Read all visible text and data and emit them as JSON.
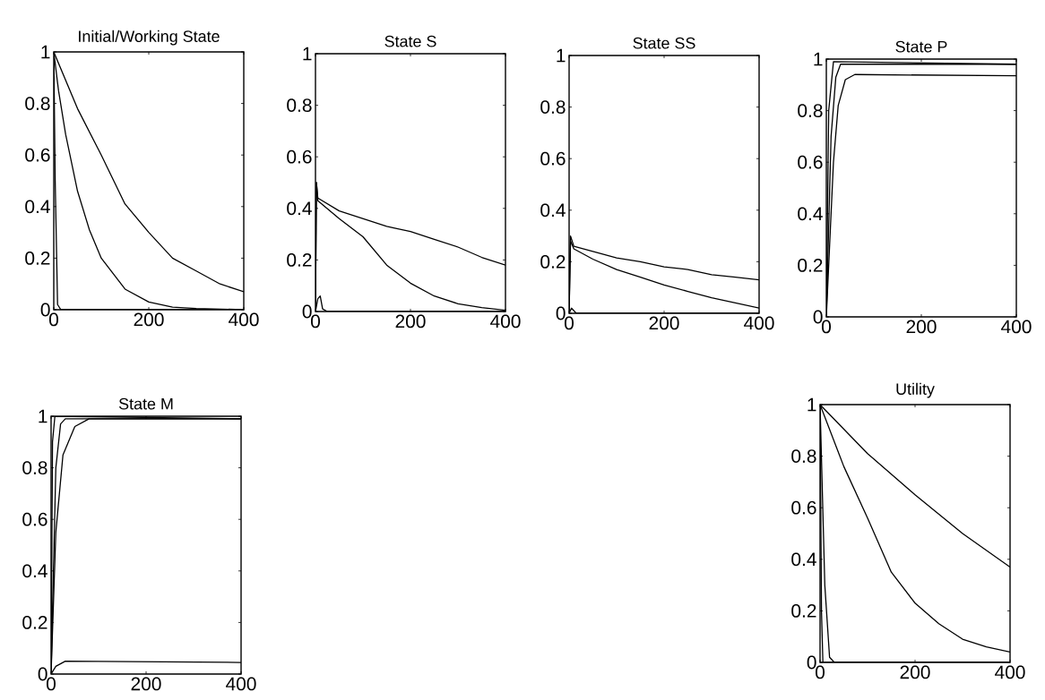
{
  "chart_data": [
    {
      "type": "line",
      "title": "Initial/Working State",
      "xlim": [
        0,
        400
      ],
      "ylim": [
        0,
        1
      ],
      "xticks": [
        0,
        200,
        400
      ],
      "yticks": [
        0,
        0.2,
        0.4,
        0.6,
        0.8,
        1
      ],
      "series": [
        {
          "color": "#000000",
          "x": [
            0,
            3,
            8,
            15,
            400
          ],
          "values": [
            1,
            0.5,
            0.02,
            0,
            0
          ]
        },
        {
          "color": "#000000",
          "x": [
            0,
            10,
            25,
            50,
            75,
            100,
            150,
            200,
            250,
            300,
            400
          ],
          "values": [
            1,
            0.85,
            0.68,
            0.46,
            0.31,
            0.2,
            0.08,
            0.03,
            0.01,
            0.005,
            0
          ]
        },
        {
          "color": "#000000",
          "x": [
            0,
            50,
            100,
            150,
            200,
            250,
            300,
            350,
            400
          ],
          "values": [
            1,
            0.78,
            0.6,
            0.41,
            0.3,
            0.2,
            0.15,
            0.1,
            0.07
          ]
        }
      ]
    },
    {
      "type": "line",
      "title": "State S",
      "xlim": [
        0,
        400
      ],
      "ylim": [
        0,
        1
      ],
      "xticks": [
        0,
        200,
        400
      ],
      "yticks": [
        0,
        0.2,
        0.4,
        0.6,
        0.8,
        1
      ],
      "series": [
        {
          "color": "#000000",
          "x": [
            0,
            5,
            10,
            15,
            25,
            400
          ],
          "values": [
            0,
            0.05,
            0.06,
            0.01,
            0,
            0
          ]
        },
        {
          "color": "#000000",
          "x": [
            0,
            2,
            5,
            50,
            100,
            150,
            200,
            250,
            300,
            350,
            400
          ],
          "values": [
            0,
            0.5,
            0.44,
            0.39,
            0.36,
            0.33,
            0.31,
            0.28,
            0.25,
            0.21,
            0.18
          ]
        },
        {
          "color": "#000000",
          "x": [
            0,
            2,
            5,
            50,
            100,
            150,
            200,
            250,
            300,
            350,
            400
          ],
          "values": [
            0,
            0.5,
            0.43,
            0.36,
            0.29,
            0.18,
            0.11,
            0.06,
            0.03,
            0.015,
            0.005
          ]
        }
      ]
    },
    {
      "type": "line",
      "title": "State SS",
      "xlim": [
        0,
        400
      ],
      "ylim": [
        0,
        1
      ],
      "xticks": [
        0,
        200,
        400
      ],
      "yticks": [
        0,
        0.2,
        0.4,
        0.6,
        0.8,
        1
      ],
      "series": [
        {
          "color": "#000000",
          "x": [
            0,
            5,
            15,
            400
          ],
          "values": [
            0,
            0.02,
            0,
            0
          ]
        },
        {
          "color": "#000000",
          "x": [
            0,
            3,
            10,
            50,
            100,
            150,
            200,
            250,
            300,
            350,
            400
          ],
          "values": [
            0,
            0.3,
            0.26,
            0.24,
            0.215,
            0.2,
            0.18,
            0.17,
            0.15,
            0.14,
            0.13
          ]
        },
        {
          "color": "#000000",
          "x": [
            0,
            3,
            10,
            50,
            100,
            150,
            200,
            250,
            300,
            350,
            400
          ],
          "values": [
            0,
            0.28,
            0.25,
            0.21,
            0.17,
            0.14,
            0.11,
            0.085,
            0.06,
            0.04,
            0.02
          ]
        }
      ]
    },
    {
      "type": "line",
      "title": "State P",
      "xlim": [
        0,
        400
      ],
      "ylim": [
        0,
        1
      ],
      "xticks": [
        0,
        200,
        400
      ],
      "yticks": [
        0,
        0.2,
        0.4,
        0.6,
        0.8,
        1
      ],
      "series": [
        {
          "color": "#000000",
          "x": [
            0,
            5,
            15,
            400
          ],
          "values": [
            0,
            0.8,
            0.99,
            0.98
          ]
        },
        {
          "color": "#000000",
          "x": [
            0,
            10,
            20,
            30,
            400
          ],
          "values": [
            0,
            0.7,
            0.93,
            0.98,
            0.98
          ]
        },
        {
          "color": "#000000",
          "x": [
            0,
            15,
            25,
            40,
            60,
            400
          ],
          "values": [
            0,
            0.6,
            0.82,
            0.92,
            0.94,
            0.935
          ]
        }
      ]
    },
    {
      "type": "line",
      "title": "State M",
      "xlim": [
        0,
        400
      ],
      "ylim": [
        0,
        1
      ],
      "xticks": [
        0,
        200,
        400
      ],
      "yticks": [
        0,
        0.2,
        0.4,
        0.6,
        0.8,
        1
      ],
      "series": [
        {
          "color": "#000000",
          "x": [
            0,
            3,
            8,
            400
          ],
          "values": [
            0,
            0.9,
            1,
            0.99
          ]
        },
        {
          "color": "#000000",
          "x": [
            0,
            10,
            20,
            30,
            400
          ],
          "values": [
            0,
            0.8,
            0.97,
            0.99,
            0.99
          ]
        },
        {
          "color": "#000000",
          "x": [
            0,
            10,
            25,
            50,
            80,
            400
          ],
          "values": [
            0,
            0.55,
            0.85,
            0.96,
            0.99,
            0.99
          ]
        },
        {
          "color": "#000000",
          "x": [
            0,
            10,
            30,
            400
          ],
          "values": [
            0,
            0.03,
            0.05,
            0.045
          ]
        }
      ]
    },
    {
      "type": "line",
      "title": "Utility",
      "xlim": [
        0,
        400
      ],
      "ylim": [
        0,
        1
      ],
      "xticks": [
        0,
        200,
        400
      ],
      "yticks": [
        0,
        0.2,
        0.4,
        0.6,
        0.8,
        1
      ],
      "series": [
        {
          "color": "#000000",
          "x": [
            0,
            3,
            6,
            400
          ],
          "values": [
            1,
            0.2,
            0,
            0
          ]
        },
        {
          "color": "#000000",
          "x": [
            0,
            10,
            20,
            30,
            400
          ],
          "values": [
            1,
            0.3,
            0.02,
            0,
            0
          ]
        },
        {
          "color": "#000000",
          "x": [
            0,
            50,
            100,
            150,
            200,
            250,
            300,
            350,
            400
          ],
          "values": [
            1,
            0.76,
            0.56,
            0.35,
            0.23,
            0.15,
            0.09,
            0.06,
            0.04
          ]
        },
        {
          "color": "#000000",
          "x": [
            0,
            100,
            200,
            300,
            400
          ],
          "values": [
            1,
            0.81,
            0.65,
            0.5,
            0.37
          ]
        }
      ]
    }
  ]
}
